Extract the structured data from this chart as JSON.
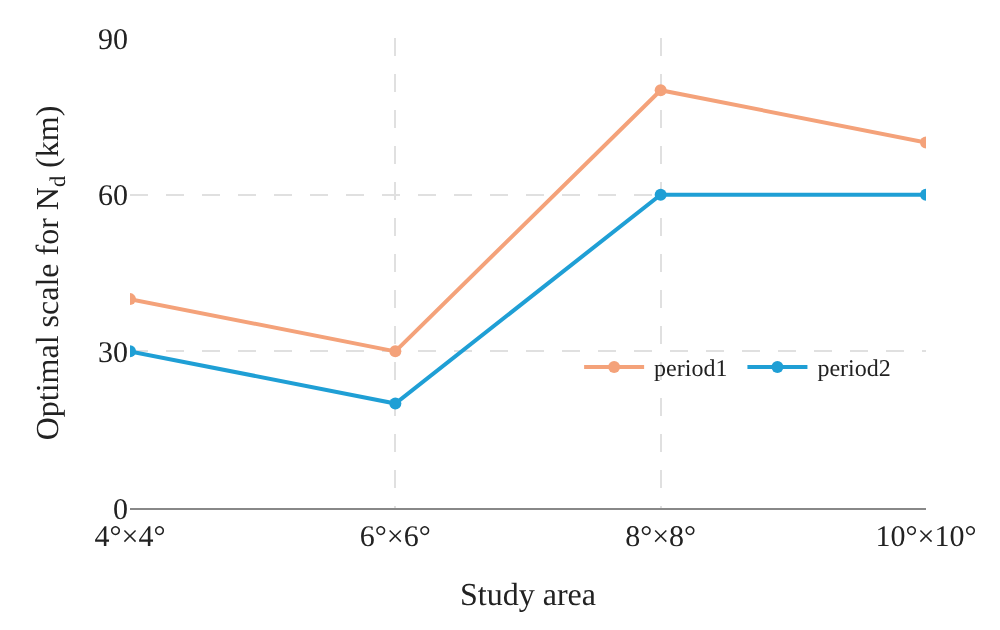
{
  "chart_data": {
    "type": "line",
    "xlabel": "Study area",
    "ylabel": "Optimal scale for N$_{d}$ (km)",
    "categories": [
      "4°×4°",
      "6°×6°",
      "8°×8°",
      "10°×10°"
    ],
    "series": [
      {
        "name": "period1",
        "color": "#f4a27a",
        "values": [
          40,
          30,
          80,
          70
        ]
      },
      {
        "name": "period2",
        "color": "#1f9fd5",
        "values": [
          30,
          20,
          60,
          60
        ]
      }
    ],
    "ylim": [
      0,
      90
    ],
    "yticks": [
      0,
      30,
      60,
      90
    ],
    "grid": true,
    "legend": "bottom right",
    "marker": "circle",
    "line_style": "solid"
  }
}
